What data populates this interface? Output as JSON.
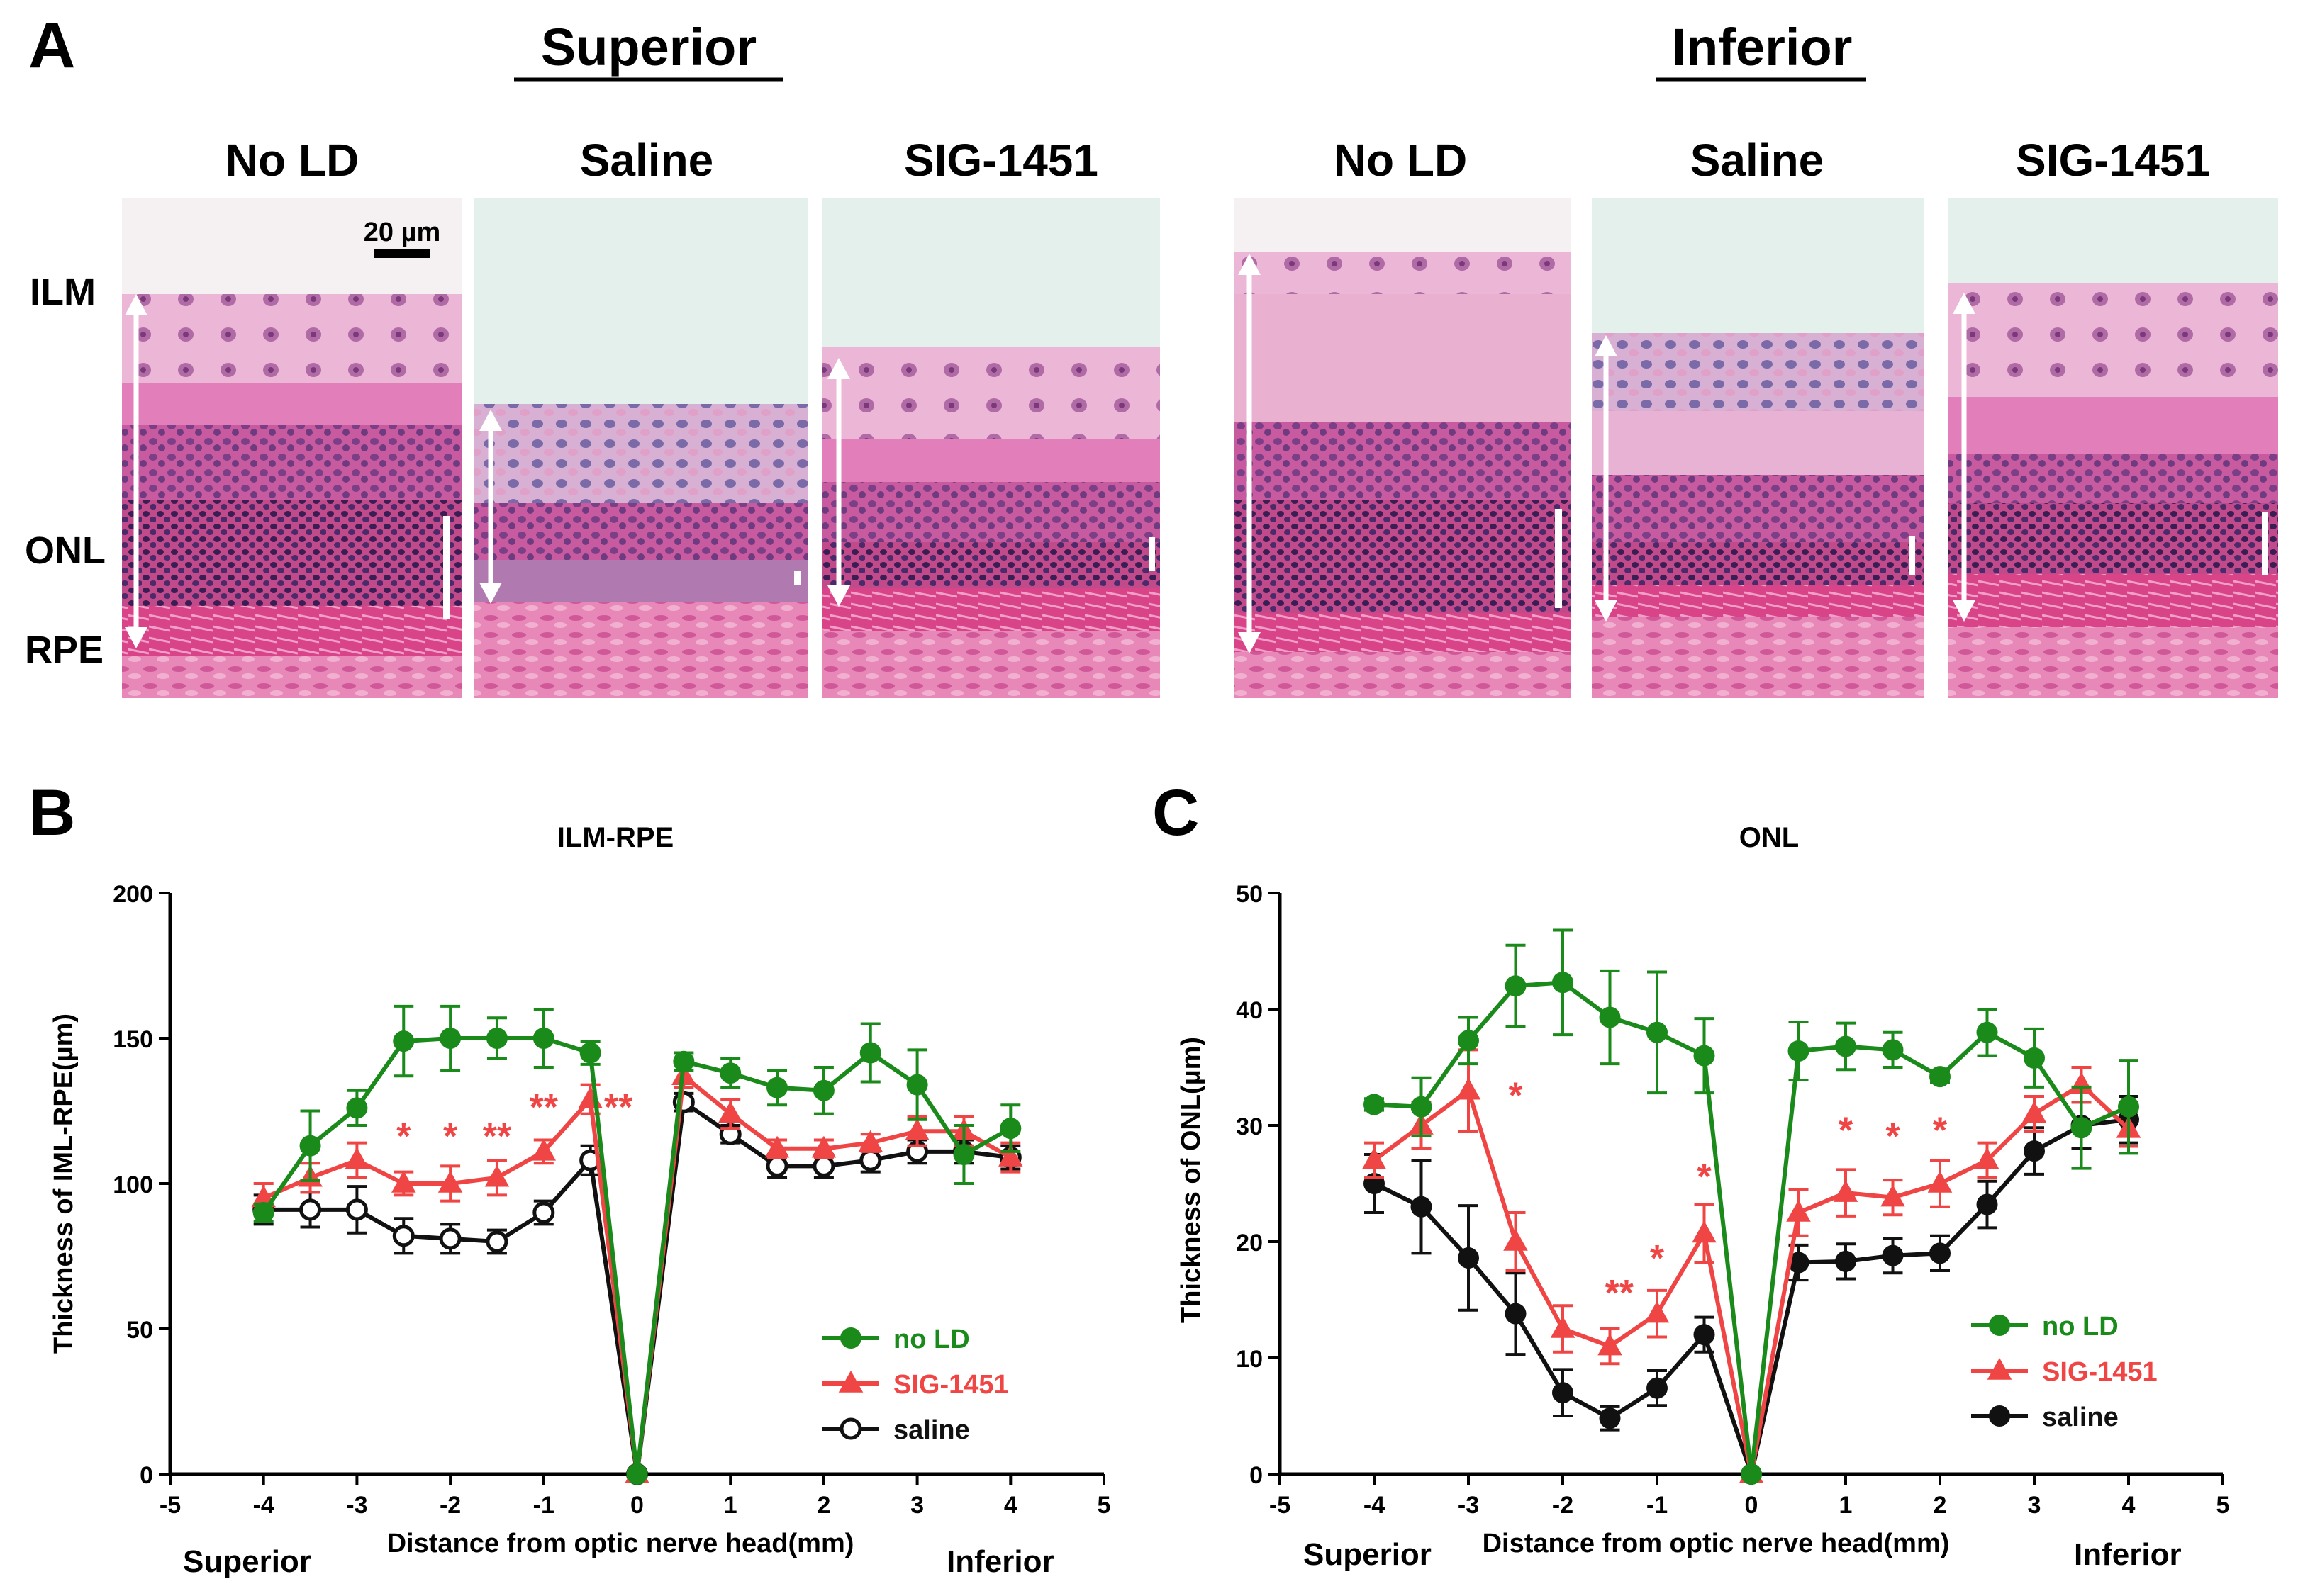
{
  "panel_labels": {
    "a": "A",
    "b": "B",
    "c": "C"
  },
  "panel_a": {
    "superior_heading": "Superior",
    "inferior_heading": "Inferior",
    "image_columns": [
      "No LD",
      "Saline",
      "SIG-1451",
      "No LD",
      "Saline",
      "SIG-1451"
    ],
    "layer_labels": {
      "ilm": "ILM",
      "onl": "ONL",
      "rpe": "RPE"
    },
    "scale_bar_label": "20 µm",
    "colors": {
      "pink_tissue": "#e0609e",
      "nuclei": "#4a2a6a",
      "background": "#e4f0ec"
    }
  },
  "chart_data": [
    {
      "type": "line",
      "panel": "B",
      "title": "ILM-RPE",
      "ylabel": "Thickness of IML-RPE(µm)",
      "xlabel": "Distance from optic nerve head(mm)",
      "left_end_label": "Superior",
      "right_end_label": "Inferior",
      "xlim": [
        -5,
        5
      ],
      "ylim": [
        0,
        200
      ],
      "xticks": [
        "-5",
        "-4",
        "-3",
        "-2",
        "-1",
        "0",
        "1",
        "2",
        "3",
        "4",
        "5"
      ],
      "yticks": [
        "0",
        "50",
        "100",
        "150",
        "200"
      ],
      "x": [
        -4,
        -3.5,
        -3,
        -2.5,
        -2,
        -1.5,
        -1,
        -0.5,
        0,
        0.5,
        1,
        1.5,
        2,
        2.5,
        3,
        3.5,
        4
      ],
      "series": [
        {
          "name": "no LD",
          "color": "#1a8a1a",
          "marker": "circle-filled",
          "values": [
            90,
            113,
            126,
            149,
            150,
            150,
            150,
            145,
            0,
            142,
            138,
            133,
            132,
            145,
            134,
            110,
            119
          ],
          "errors": [
            3,
            12,
            6,
            12,
            11,
            7,
            10,
            4,
            0,
            3,
            5,
            6,
            8,
            10,
            12,
            10,
            8
          ]
        },
        {
          "name": "SIG-1451",
          "color": "#f04545",
          "marker": "triangle",
          "values": [
            95,
            102,
            108,
            100,
            100,
            102,
            111,
            129,
            0,
            137,
            124,
            112,
            112,
            114,
            118,
            118,
            109
          ],
          "errors": [
            5,
            5,
            6,
            4,
            6,
            6,
            4,
            5,
            0,
            4,
            5,
            3,
            3,
            3,
            5,
            5,
            5
          ]
        },
        {
          "name": "saline",
          "color": "#111111",
          "marker": "circle-open",
          "values": [
            91,
            91,
            91,
            82,
            81,
            80,
            90,
            108,
            0,
            128,
            117,
            106,
            106,
            108,
            111,
            111,
            109
          ],
          "errors": [
            5,
            6,
            8,
            6,
            5,
            4,
            4,
            5,
            0,
            3,
            3,
            4,
            4,
            4,
            4,
            4,
            4
          ]
        }
      ],
      "annotations": [
        {
          "text": "*",
          "x": -2.5,
          "y": 112
        },
        {
          "text": "*",
          "x": -2,
          "y": 112
        },
        {
          "text": "**",
          "x": -1.5,
          "y": 112
        },
        {
          "text": "**",
          "x": -1,
          "y": 122
        },
        {
          "text": "**",
          "x": -0.2,
          "y": 122
        }
      ],
      "legend_position": "bottom-right"
    },
    {
      "type": "line",
      "panel": "C",
      "title": "ONL",
      "ylabel": "Thickness of ONL(µm)",
      "xlabel": "Distance from optic nerve head(mm)",
      "left_end_label": "Superior",
      "right_end_label": "Inferior",
      "xlim": [
        -5,
        5
      ],
      "ylim": [
        0,
        50
      ],
      "xticks": [
        "-5",
        "-4",
        "-3",
        "-2",
        "-1",
        "0",
        "1",
        "2",
        "3",
        "4",
        "5"
      ],
      "yticks": [
        "0",
        "10",
        "20",
        "30",
        "40",
        "50"
      ],
      "x": [
        -4,
        -3.5,
        -3,
        -2.5,
        -2,
        -1.5,
        -1,
        -0.5,
        0,
        0.5,
        1,
        1.5,
        2,
        2.5,
        3,
        3.5,
        4
      ],
      "series": [
        {
          "name": "no LD",
          "color": "#1a8a1a",
          "marker": "circle-filled",
          "values": [
            31.8,
            31.6,
            37.3,
            42.0,
            42.3,
            39.3,
            38.0,
            36.0,
            0,
            36.4,
            36.8,
            36.5,
            34.2,
            38.0,
            35.8,
            29.8,
            31.6
          ],
          "errors": [
            0.5,
            2.5,
            2.0,
            3.5,
            4.5,
            4.0,
            5.2,
            3.2,
            0,
            2.5,
            2.0,
            1.5,
            0.5,
            2.0,
            2.5,
            3.5,
            4.0
          ]
        },
        {
          "name": "SIG-1451",
          "color": "#f04545",
          "marker": "triangle",
          "values": [
            27.0,
            30.0,
            33.0,
            20.0,
            12.5,
            11.0,
            13.8,
            20.7,
            0,
            22.5,
            24.2,
            23.8,
            25.0,
            27.0,
            31.0,
            33.5,
            29.7
          ],
          "errors": [
            1.5,
            2.0,
            3.5,
            2.5,
            2.0,
            1.5,
            2.0,
            2.5,
            0,
            2.0,
            2.0,
            1.5,
            2.0,
            1.5,
            1.5,
            1.5,
            1.5
          ]
        },
        {
          "name": "saline",
          "color": "#111111",
          "marker": "circle-filled",
          "values": [
            25.0,
            23.0,
            18.6,
            13.8,
            7.0,
            4.8,
            7.4,
            12.0,
            0,
            18.2,
            18.3,
            18.8,
            19.0,
            23.2,
            27.8,
            30.0,
            30.5
          ],
          "errors": [
            2.5,
            4.0,
            4.5,
            3.5,
            2.0,
            1.0,
            1.5,
            1.5,
            0,
            1.5,
            1.5,
            1.5,
            1.5,
            2.0,
            2.0,
            2.0,
            2.0
          ]
        }
      ],
      "annotations": [
        {
          "text": "*",
          "x": -2.5,
          "y": 31.5
        },
        {
          "text": "**",
          "x": -1.4,
          "y": 14.5
        },
        {
          "text": "*",
          "x": -1,
          "y": 17.5
        },
        {
          "text": "*",
          "x": -0.5,
          "y": 24.5
        },
        {
          "text": "*",
          "x": 1,
          "y": 28.5
        },
        {
          "text": "*",
          "x": 1.5,
          "y": 28.0
        },
        {
          "text": "*",
          "x": 2,
          "y": 28.5
        }
      ],
      "legend_position": "bottom-right"
    }
  ]
}
